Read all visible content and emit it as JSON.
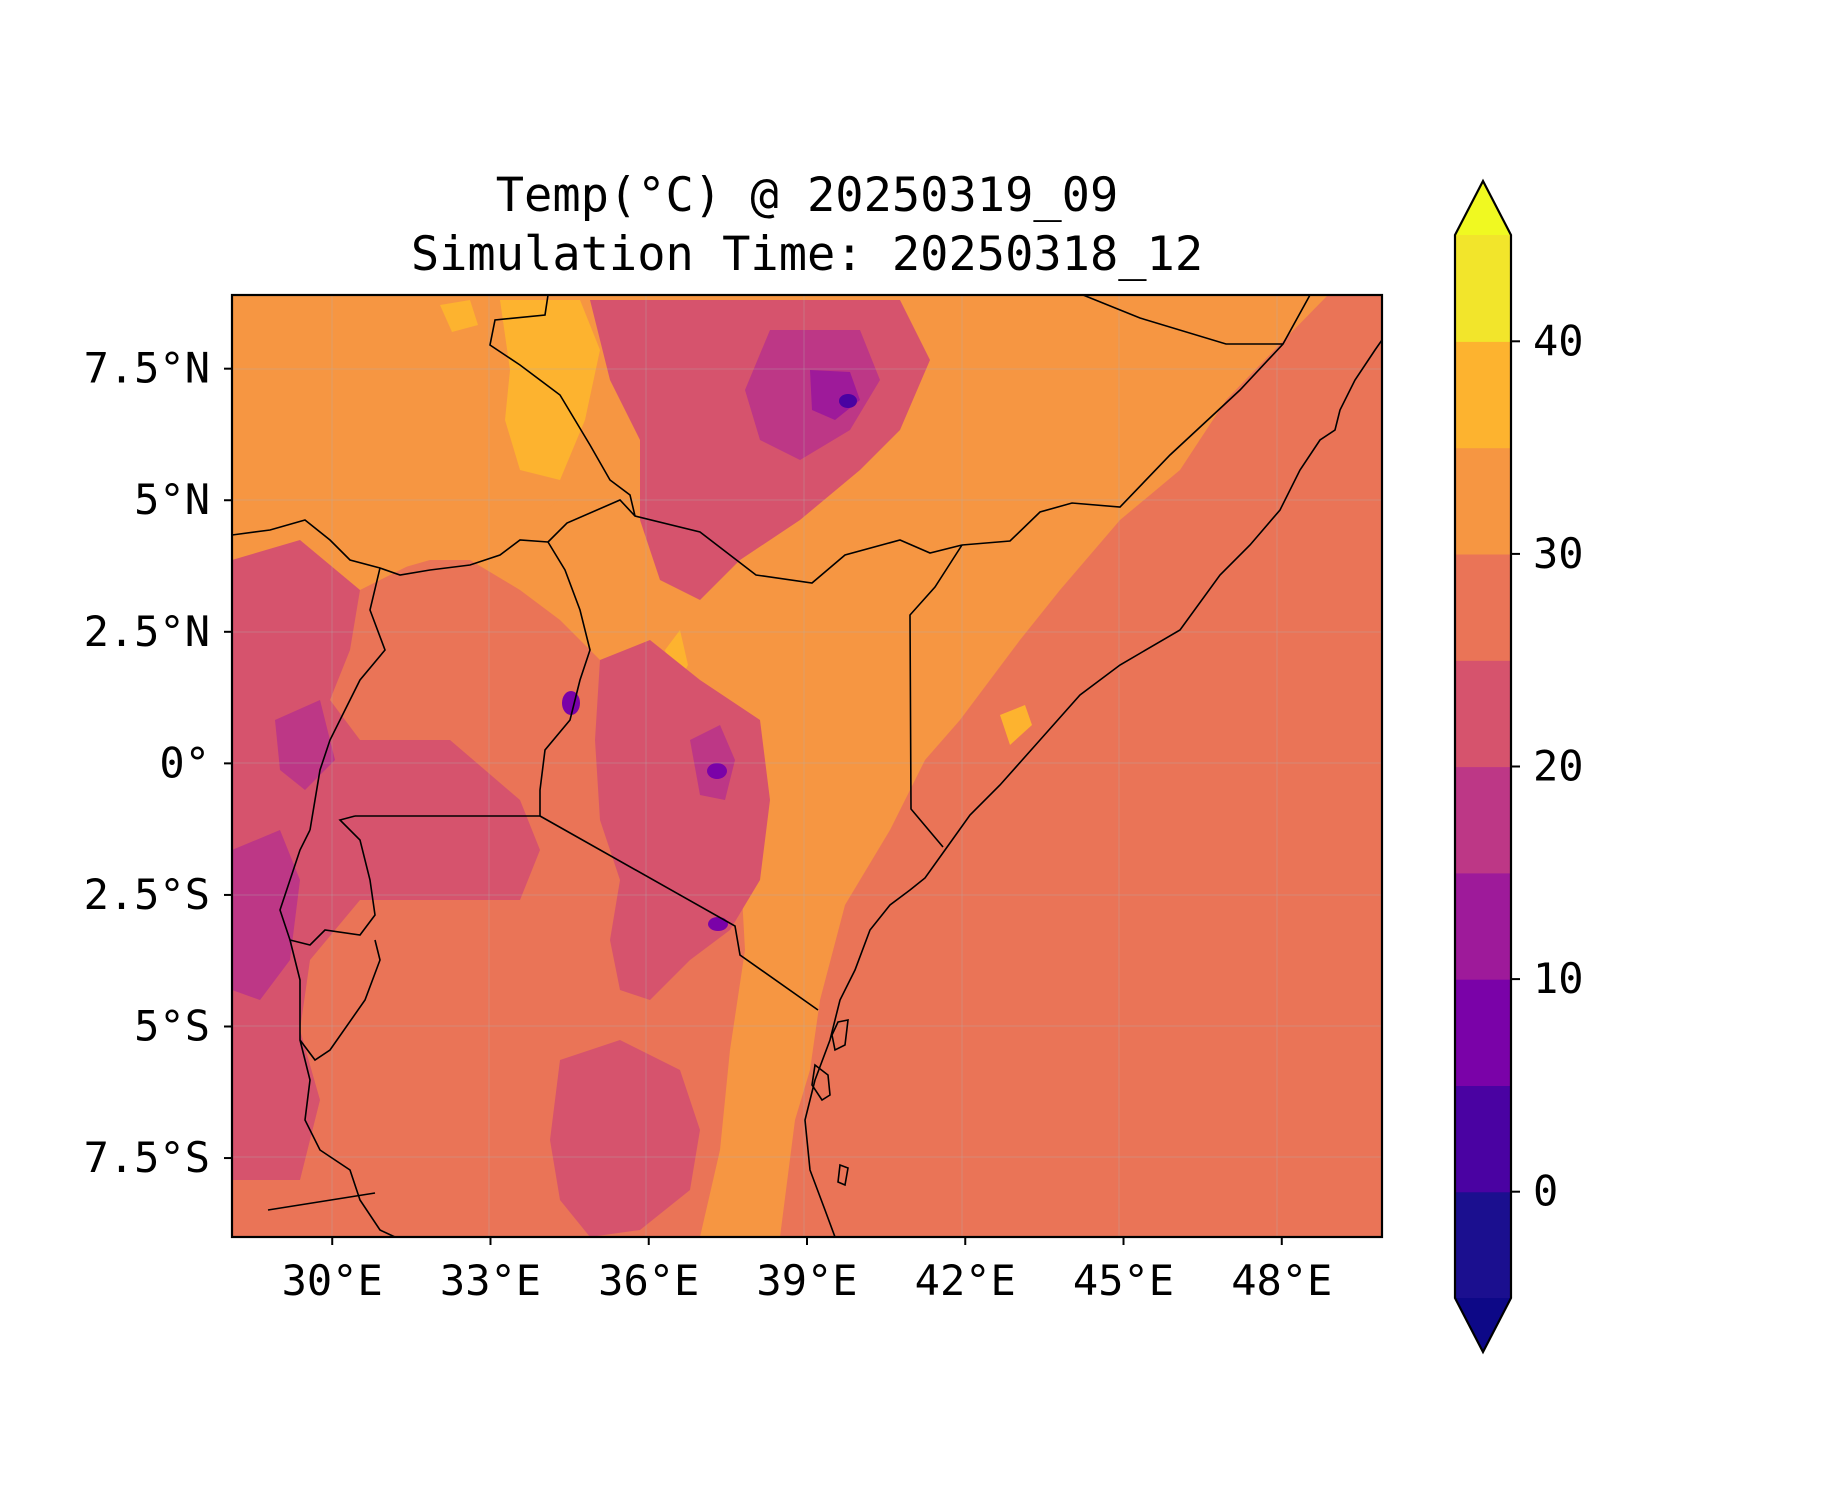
{
  "figure": {
    "title_line1": "Temp(°C) @ 20250319_09",
    "title_line2": "Simulation Time: 20250318_12"
  },
  "map": {
    "lon_range": [
      28.1,
      49.9
    ],
    "lat_range": [
      -9.0,
      8.9
    ],
    "lon_ticks": [
      30,
      33,
      36,
      39,
      42,
      45,
      48
    ],
    "lon_tick_labels": [
      "30°E",
      "33°E",
      "36°E",
      "39°E",
      "42°E",
      "45°E",
      "48°E"
    ],
    "lat_ticks": [
      7.5,
      5,
      2.5,
      0,
      -2.5,
      -5,
      -7.5
    ],
    "lat_tick_labels": [
      "7.5°N",
      "5°N",
      "2.5°N",
      "0°",
      "2.5°S",
      "5°S",
      "7.5°S"
    ]
  },
  "colorbar": {
    "levels": [
      -5,
      0,
      5,
      10,
      15,
      20,
      25,
      30,
      35,
      40,
      45
    ],
    "colors": [
      "#1b0f8f",
      "#4a02a2",
      "#7a02a8",
      "#9e1a9a",
      "#bd3786",
      "#d6536d",
      "#ea7457",
      "#f69642",
      "#fdb32f",
      "#f2e52b"
    ],
    "under_color": "#0d0887",
    "over_color": "#f0f921",
    "extend": "both",
    "tick_values": [
      0,
      10,
      20,
      30,
      40
    ],
    "tick_labels": [
      "0",
      "10",
      "20",
      "30",
      "40"
    ]
  }
}
